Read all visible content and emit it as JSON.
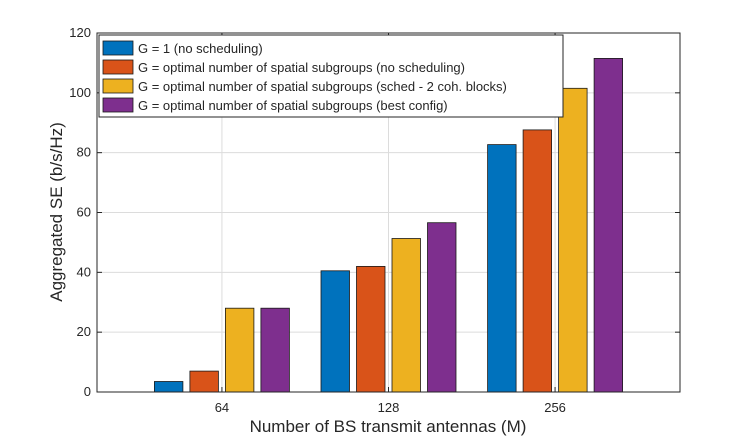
{
  "chart_data": {
    "type": "bar",
    "title": "",
    "xlabel": "Number of BS transmit antennas (M)",
    "ylabel": "Aggregated SE (b/s/Hz)",
    "categories": [
      "64",
      "128",
      "256"
    ],
    "ylim": [
      0,
      120
    ],
    "yticks": [
      0,
      20,
      40,
      60,
      80,
      100,
      120
    ],
    "grid": true,
    "legend_position": "top-left",
    "series": [
      {
        "name": "G = 1 (no scheduling)",
        "color": "#0072BD",
        "values": [
          3.5,
          40.5,
          82.7
        ]
      },
      {
        "name": "G = optimal number of spatial subgroups (no scheduling)",
        "color": "#D95319",
        "values": [
          7.0,
          42.0,
          87.6
        ]
      },
      {
        "name": "G = optimal number of spatial subgroups (sched - 2 coh. blocks)",
        "color": "#EDB120",
        "values": [
          28.0,
          51.3,
          101.5
        ]
      },
      {
        "name": "G = optimal number of spatial subgroups (best config)",
        "color": "#7E2F8E",
        "values": [
          28.0,
          56.6,
          111.5
        ]
      }
    ]
  }
}
